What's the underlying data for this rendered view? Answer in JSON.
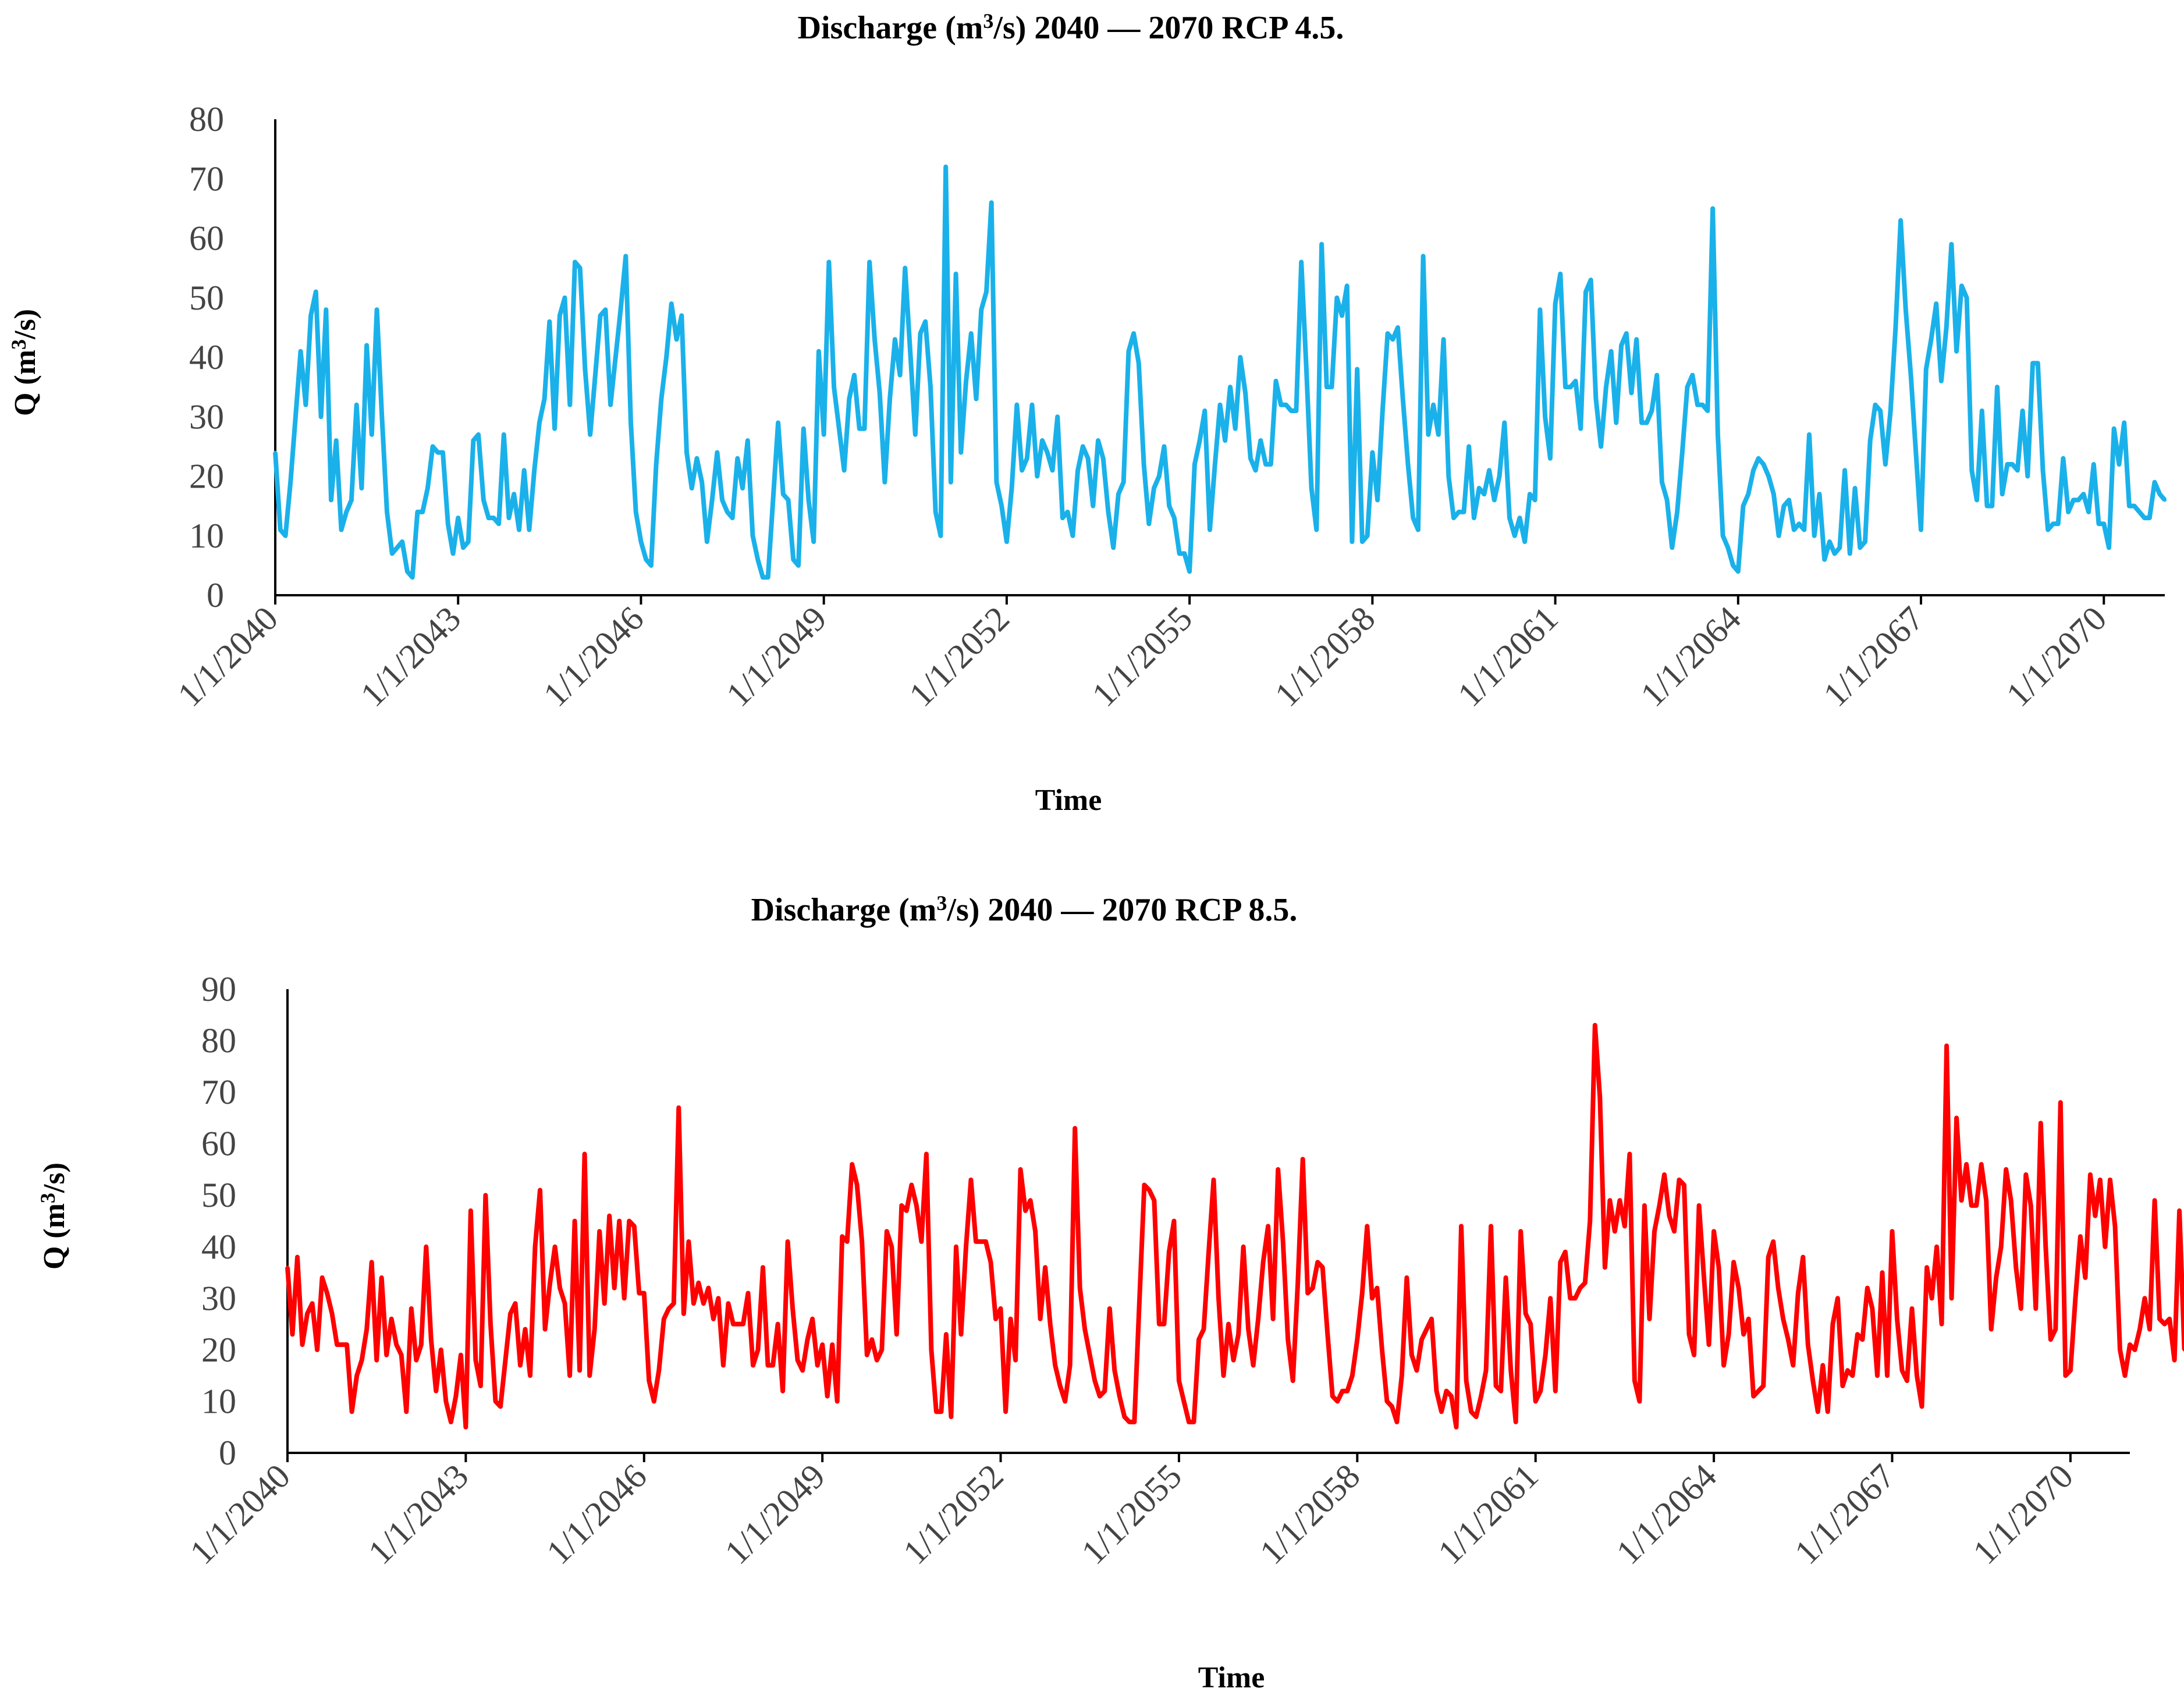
{
  "chart_data": [
    {
      "type": "line",
      "title": "Discharge (m3/s) 2040 — 2070 RCP 4.5.",
      "title_parts": {
        "pre": "Discharge (m",
        "sup": "3",
        "post": "/s) 2040 — 2070 RCP 4.5."
      },
      "xlabel": "Time",
      "ylabel_parts": {
        "pre": "Q (m",
        "sup": "3",
        "post": "/s)"
      },
      "ylim": [
        0,
        80
      ],
      "yticks": [
        0,
        10,
        20,
        30,
        40,
        50,
        60,
        70,
        80
      ],
      "xticks": [
        "1/1/2040",
        "1/1/2043",
        "1/1/2046",
        "1/1/2049",
        "1/1/2052",
        "1/1/2055",
        "1/1/2058",
        "1/1/2061",
        "1/1/2064",
        "1/1/2067",
        "1/1/2070"
      ],
      "x_start": "2040-01",
      "x_step": "monthly",
      "series": [
        {
          "name": "RCP 4.5",
          "color": "#1ab1ea",
          "values": [
            24,
            11,
            10,
            19,
            30,
            41,
            32,
            47,
            51,
            30,
            48,
            16,
            26,
            11,
            14,
            16,
            32,
            18,
            42,
            27,
            48,
            30,
            14,
            7,
            8,
            9,
            4,
            3,
            14,
            14,
            18,
            25,
            24,
            24,
            12,
            7,
            13,
            8,
            9,
            26,
            27,
            16,
            13,
            13,
            12,
            27,
            13,
            17,
            11,
            21,
            11,
            21,
            29,
            33,
            46,
            28,
            47,
            50,
            32,
            56,
            55,
            38,
            27,
            37,
            47,
            48,
            32,
            40,
            48,
            57,
            29,
            14,
            9,
            6,
            5,
            22,
            33,
            40,
            49,
            43,
            47,
            24,
            18,
            23,
            19,
            9,
            16,
            24,
            16,
            14,
            13,
            23,
            18,
            26,
            10,
            6,
            3,
            3,
            16,
            29,
            17,
            16,
            6,
            5,
            28,
            16,
            9,
            41,
            27,
            56,
            35,
            28,
            21,
            33,
            37,
            28,
            28,
            56,
            43,
            34,
            19,
            33,
            43,
            37,
            55,
            41,
            27,
            44,
            46,
            35,
            14,
            10,
            72,
            19,
            54,
            24,
            36,
            44,
            33,
            48,
            51,
            66,
            19,
            15,
            9,
            18,
            32,
            21,
            23,
            32,
            20,
            26,
            24,
            21,
            30,
            13,
            14,
            10,
            21,
            25,
            23,
            15,
            26,
            23,
            14,
            8,
            17,
            19,
            41,
            44,
            39,
            22,
            12,
            18,
            20,
            25,
            15,
            13,
            7,
            7,
            4,
            22,
            26,
            31,
            11,
            22,
            32,
            26,
            35,
            28,
            40,
            34,
            23,
            21,
            26,
            22,
            22,
            36,
            32,
            32,
            31,
            31,
            56,
            38,
            18,
            11,
            59,
            35,
            35,
            50,
            47,
            52,
            9,
            38,
            9,
            10,
            24,
            16,
            31,
            44,
            43,
            45,
            33,
            22,
            13,
            11,
            57,
            27,
            32,
            27,
            43,
            20,
            13,
            14,
            14,
            25,
            13,
            18,
            17,
            21,
            16,
            20,
            29,
            13,
            10,
            13,
            9,
            17,
            16,
            48,
            30,
            23,
            49,
            54,
            35,
            35,
            36,
            28,
            51,
            53,
            33,
            25,
            35,
            41,
            29,
            42,
            44,
            34,
            43,
            29,
            29,
            31,
            37,
            19,
            16,
            8,
            14,
            24,
            35,
            37,
            32,
            32,
            31,
            65,
            27,
            10,
            8,
            5,
            4,
            15,
            17,
            21,
            23,
            22,
            20,
            17,
            10,
            15,
            16,
            11,
            12,
            11,
            27,
            10,
            17,
            6,
            9,
            7,
            8,
            21,
            7,
            18,
            8,
            9,
            26,
            32,
            31,
            22,
            31,
            45,
            63,
            48,
            37,
            24,
            11,
            38,
            43,
            49,
            36,
            45,
            59,
            41,
            52,
            50,
            21,
            16,
            31,
            15,
            15,
            35,
            17,
            22,
            22,
            21,
            31,
            20,
            39,
            39,
            21,
            11,
            12,
            12,
            23,
            14,
            16,
            16,
            17,
            14,
            22,
            12,
            12,
            8,
            28,
            22,
            29,
            15,
            15,
            14,
            13,
            13,
            19,
            17,
            16
          ]
        }
      ]
    },
    {
      "type": "line",
      "title": "Discharge (m3/s) 2040 — 2070 RCP 8.5.",
      "title_parts": {
        "pre": "Discharge (m",
        "sup": "3",
        "post": "/s) 2040 — 2070 RCP 8.5."
      },
      "xlabel": "Time",
      "ylabel_parts": {
        "pre": "Q (m",
        "sup": "3",
        "post": "/s)"
      },
      "ylim": [
        0,
        90
      ],
      "yticks": [
        0,
        10,
        20,
        30,
        40,
        50,
        60,
        70,
        80,
        90
      ],
      "xticks": [
        "1/1/2040",
        "1/1/2043",
        "1/1/2046",
        "1/1/2049",
        "1/1/2052",
        "1/1/2055",
        "1/1/2058",
        "1/1/2061",
        "1/1/2064",
        "1/1/2067",
        "1/1/2070"
      ],
      "x_start": "2040-01",
      "x_step": "monthly",
      "series": [
        {
          "name": "RCP 8.5",
          "color": "#ff0000",
          "values": [
            36,
            23,
            38,
            21,
            27,
            29,
            20,
            34,
            31,
            27,
            21,
            21,
            21,
            8,
            15,
            18,
            24,
            37,
            18,
            34,
            19,
            26,
            21,
            19,
            8,
            28,
            18,
            21,
            40,
            22,
            12,
            20,
            10,
            6,
            11,
            19,
            5,
            47,
            18,
            13,
            50,
            25,
            10,
            9,
            18,
            27,
            29,
            17,
            24,
            15,
            40,
            51,
            24,
            33,
            40,
            32,
            29,
            15,
            45,
            16,
            58,
            15,
            24,
            43,
            29,
            46,
            32,
            45,
            30,
            45,
            44,
            31,
            31,
            14,
            10,
            16,
            26,
            28,
            29,
            67,
            27,
            41,
            29,
            33,
            29,
            32,
            26,
            30,
            17,
            29,
            25,
            25,
            25,
            31,
            17,
            20,
            36,
            17,
            17,
            25,
            12,
            41,
            28,
            18,
            16,
            22,
            26,
            17,
            21,
            11,
            21,
            10,
            42,
            41,
            56,
            52,
            41,
            19,
            22,
            18,
            20,
            43,
            40,
            23,
            48,
            47,
            52,
            48,
            41,
            58,
            20,
            8,
            8,
            23,
            7,
            40,
            23,
            40,
            53,
            41,
            41,
            41,
            37,
            26,
            28,
            8,
            26,
            18,
            55,
            47,
            49,
            43,
            26,
            36,
            25,
            17,
            13,
            10,
            17,
            63,
            32,
            24,
            19,
            14,
            11,
            12,
            28,
            16,
            11,
            7,
            6,
            6,
            29,
            52,
            51,
            49,
            25,
            25,
            39,
            45,
            14,
            10,
            6,
            6,
            22,
            24,
            39,
            53,
            30,
            15,
            25,
            18,
            23,
            40,
            24,
            17,
            26,
            37,
            44,
            26,
            55,
            41,
            22,
            14,
            33,
            57,
            31,
            32,
            37,
            36,
            23,
            11,
            10,
            12,
            12,
            15,
            22,
            31,
            44,
            30,
            32,
            20,
            10,
            9,
            6,
            15,
            34,
            19,
            16,
            22,
            24,
            26,
            12,
            8,
            12,
            11,
            5,
            44,
            14,
            8,
            7,
            11,
            16,
            44,
            13,
            12,
            34,
            16,
            6,
            43,
            27,
            25,
            10,
            12,
            19,
            30,
            12,
            37,
            39,
            30,
            30,
            32,
            33,
            45,
            83,
            69,
            36,
            49,
            43,
            49,
            44,
            58,
            14,
            10,
            48,
            26,
            43,
            48,
            54,
            46,
            43,
            53,
            52,
            23,
            19,
            48,
            34,
            21,
            43,
            36,
            17,
            23,
            37,
            32,
            23,
            26,
            11,
            12,
            13,
            38,
            41,
            32,
            26,
            22,
            17,
            31,
            38,
            21,
            14,
            8,
            17,
            8,
            25,
            30,
            13,
            16,
            15,
            23,
            22,
            32,
            28,
            15,
            35,
            15,
            43,
            26,
            16,
            14,
            28,
            15,
            9,
            36,
            30,
            40,
            25,
            79,
            30,
            65,
            49,
            56,
            48,
            48,
            56,
            49,
            24,
            34,
            40,
            55,
            49,
            36,
            28,
            54,
            48,
            28,
            64,
            40,
            22,
            24,
            68,
            15,
            16,
            30,
            42,
            34,
            54,
            46,
            53,
            40,
            53,
            44,
            20,
            15,
            21,
            20,
            24,
            30,
            24,
            49,
            26,
            25,
            26,
            18,
            47,
            20
          ]
        }
      ]
    }
  ]
}
